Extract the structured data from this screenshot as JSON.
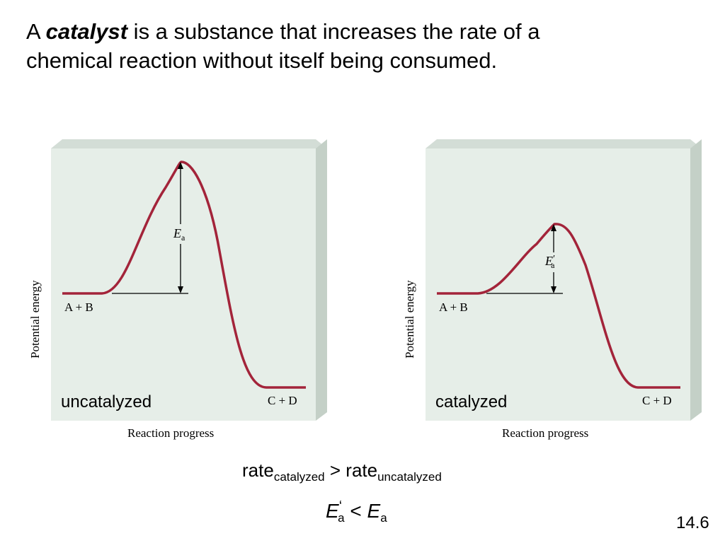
{
  "headline": {
    "prefix": "A ",
    "keyword": "catalyst",
    "line1_rest": " is a substance that increases the rate of a",
    "line2": "chemical reaction without itself being consumed."
  },
  "diagrams": [
    {
      "condition": "uncatalyzed",
      "y_axis_label": "Potential energy",
      "x_axis_label": "Reaction progress",
      "reactants": "A + B",
      "products": "C + D",
      "barrier_symbol": "E",
      "barrier_subscript": "a",
      "barrier_prime": "",
      "activation_energy_relative": 1.0
    },
    {
      "condition": "catalyzed",
      "y_axis_label": "Potential energy",
      "x_axis_label": "Reaction progress",
      "reactants": "A + B",
      "products": "C + D",
      "barrier_symbol": "E",
      "barrier_subscript": "a",
      "barrier_prime": "′",
      "activation_energy_relative": 0.53
    }
  ],
  "equations": {
    "rate_word": "rate",
    "catalyzed_sub": "catalyzed",
    "greater_than": " > ",
    "uncatalyzed_sub": "uncatalyzed",
    "ea_symbol": "E",
    "ea_sub": "a",
    "ea_prime": "‘",
    "less_than": " < "
  },
  "slide_number": "14.6",
  "colors": {
    "curve": "#a3243a",
    "panel_face": "#e6eee8",
    "panel_top": "#d3ddd6",
    "panel_side": "#c4d0c7"
  }
}
